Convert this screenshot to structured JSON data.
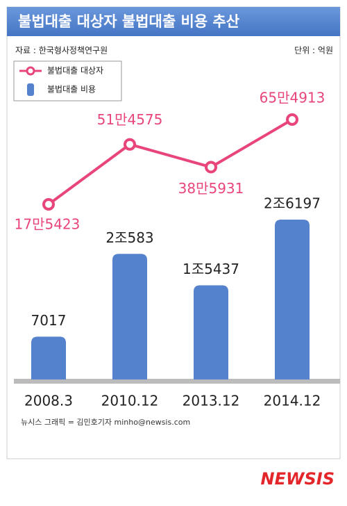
{
  "chart_data": {
    "type": "combo",
    "title": "불법대출 대상자 불법대출 비용 추산",
    "source": "자료 : 한국형사정책연구원",
    "unit": "단위 : 억원",
    "categories": [
      "2008.3",
      "2010.12",
      "2013.12",
      "2014.12"
    ],
    "series": [
      {
        "name": "불법대출 대상자",
        "type": "line",
        "color": "#e8457a",
        "values": [
          175423,
          514575,
          385931,
          654913
        ],
        "value_labels": [
          "17만5423",
          "51만4575",
          "38만5931",
          "65만4913"
        ]
      },
      {
        "name": "불법대출 비용",
        "type": "bar",
        "color": "#5582cc",
        "values": [
          7017,
          20583,
          15437,
          26197
        ],
        "value_labels": [
          "7017",
          "2조583",
          "1조5437",
          "2조6197"
        ]
      }
    ]
  },
  "credit": "뉴시스 그래픽 = 김민호기자 minho@newsis.com",
  "logo": "NEWSIS"
}
